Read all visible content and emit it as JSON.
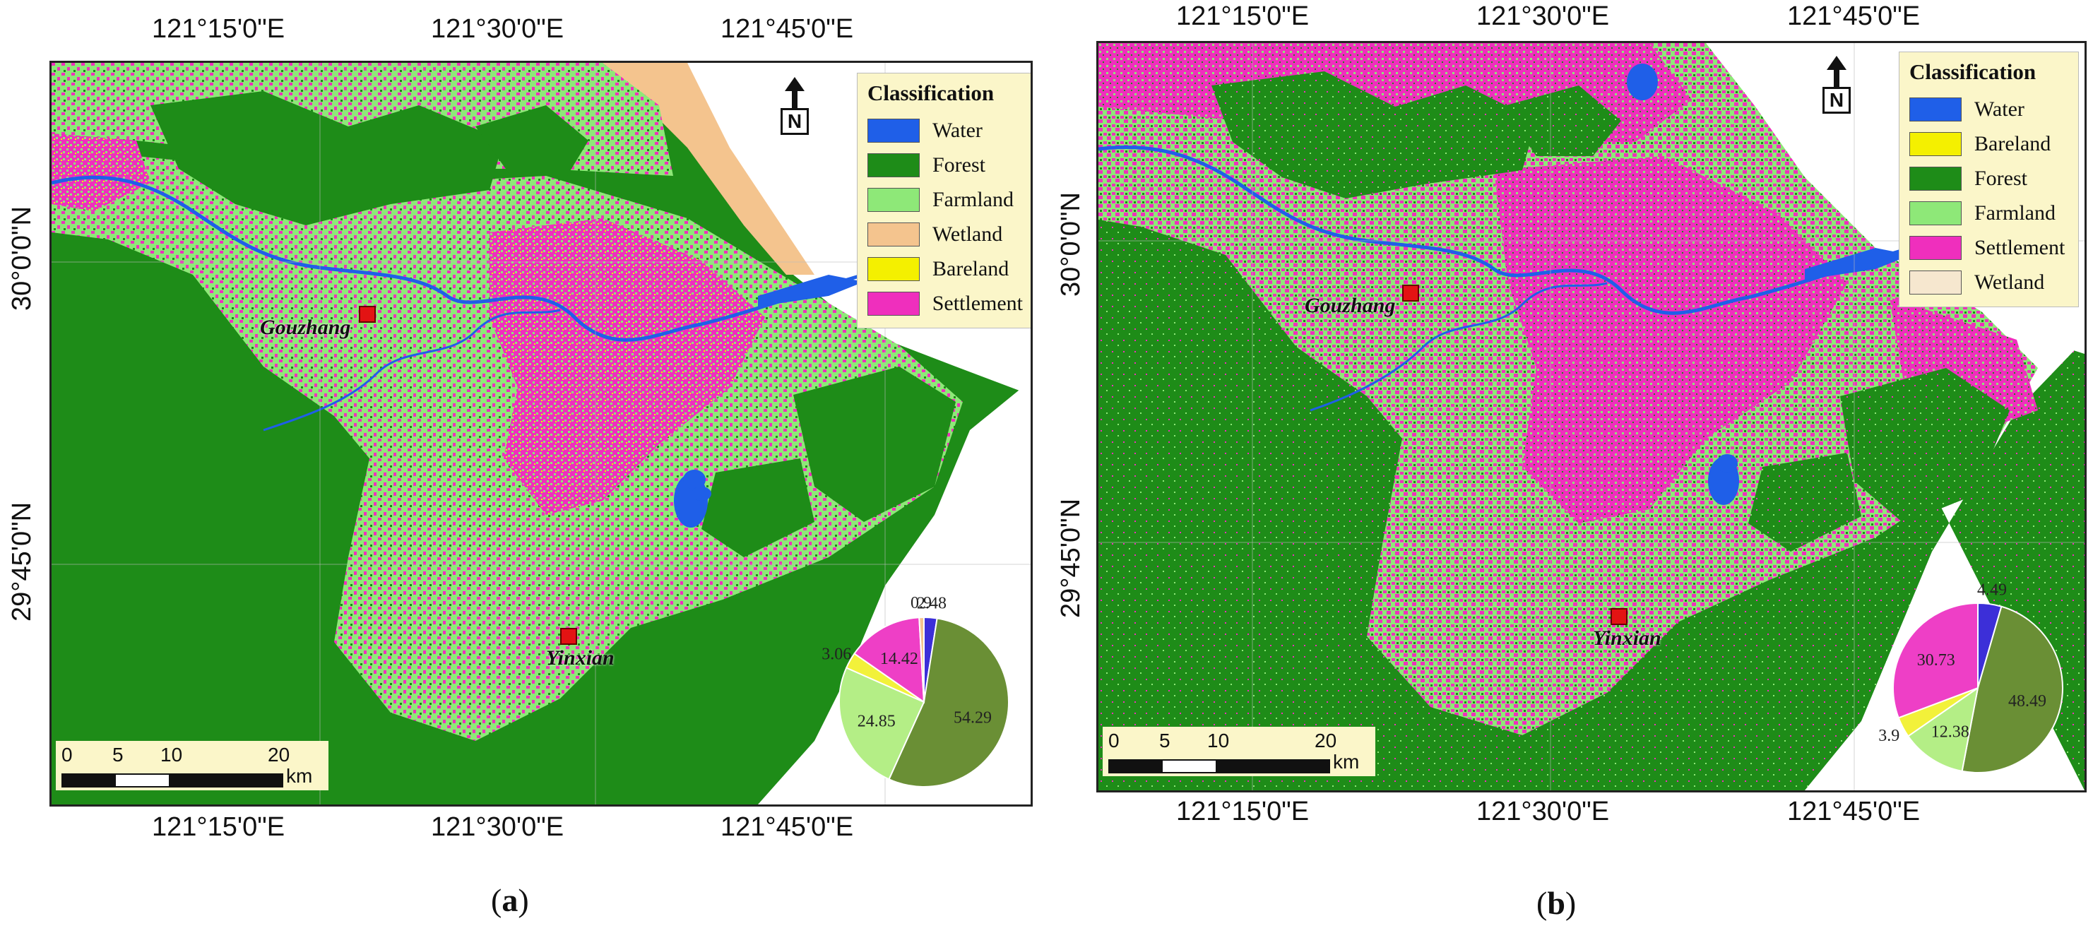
{
  "colors": {
    "water": "#1f5fe8",
    "forest": "#1e8c18",
    "farmland": "#8ee878",
    "wetland": "#f4c48e",
    "wetland_b": "#f6e7cf",
    "bareland": "#f4f000",
    "settlement": "#ef2fbd",
    "pie_forest": "#6a8f35",
    "pie_farmland": "#b4ee86",
    "pie_water": "#3c2fd8",
    "pie_settlement": "#ee3fc6",
    "pie_bareland": "#f2f13a"
  },
  "panel_a": {
    "label_open": "(",
    "label_letter": "a",
    "label_close": ")",
    "top_lon": [
      "121°15'0\"E",
      "121°30'0\"E",
      "121°45'0\"E"
    ],
    "bottom_lon": [
      "121°15'0\"E",
      "121°30'0\"E",
      "121°45'0\"E"
    ],
    "lat": [
      "30°0'0\"N",
      "29°45'0\"N"
    ],
    "legend": {
      "title": "Classification",
      "items": [
        {
          "label": "Water",
          "color": "#1f5fe8"
        },
        {
          "label": "Forest",
          "color": "#1e8c18"
        },
        {
          "label": "Farmland",
          "color": "#8ee878"
        },
        {
          "label": "Wetland",
          "color": "#f4c48e"
        },
        {
          "label": "Bareland",
          "color": "#f4f000"
        },
        {
          "label": "Settlement",
          "color": "#ef2fbd"
        }
      ]
    },
    "north": "N",
    "cities": [
      "Gouzhang",
      "Yinxian"
    ],
    "scale": {
      "ticks": [
        "0",
        "5",
        "10",
        "20"
      ],
      "unit": "km"
    },
    "pie": [
      {
        "label": "2.48",
        "value": 2.48,
        "color": "#3c2fd8"
      },
      {
        "label": "54.29",
        "value": 54.29,
        "color": "#6a8f35"
      },
      {
        "label": "24.85",
        "value": 24.85,
        "color": "#b4ee86"
      },
      {
        "label": "3.06",
        "value": 3.06,
        "color": "#f2f13a"
      },
      {
        "label": "14.42",
        "value": 14.42,
        "color": "#ee3fc6"
      },
      {
        "label": "0.9",
        "value": 0.9,
        "color": "#f4c48e"
      }
    ]
  },
  "panel_b": {
    "label_open": "(",
    "label_letter": "b",
    "label_close": ")",
    "top_lon": [
      "121°15'0\"E",
      "121°30'0\"E",
      "121°45'0\"E"
    ],
    "bottom_lon": [
      "121°15'0\"E",
      "121°30'0\"E",
      "121°45'0\"E"
    ],
    "lat": [
      "30°0'0\"N",
      "29°45'0\"N"
    ],
    "legend": {
      "title": "Classification",
      "items": [
        {
          "label": "Water",
          "color": "#1f5fe8"
        },
        {
          "label": "Bareland",
          "color": "#f4f000"
        },
        {
          "label": "Forest",
          "color": "#1e8c18"
        },
        {
          "label": "Farmland",
          "color": "#8ee878"
        },
        {
          "label": "Settlement",
          "color": "#ef2fbd"
        },
        {
          "label": "Wetland",
          "color": "#f6e7cf"
        }
      ]
    },
    "north": "N",
    "cities": [
      "Gouzhang",
      "Yinxian"
    ],
    "scale": {
      "ticks": [
        "0",
        "5",
        "10",
        "20"
      ],
      "unit": "km"
    },
    "pie": [
      {
        "label": "4.49",
        "value": 4.49,
        "color": "#3c2fd8"
      },
      {
        "label": "48.49",
        "value": 48.49,
        "color": "#6a8f35"
      },
      {
        "label": "12.38",
        "value": 12.38,
        "color": "#b4ee86"
      },
      {
        "label": "3.9",
        "value": 3.9,
        "color": "#f2f13a"
      },
      {
        "label": "30.73",
        "value": 30.73,
        "color": "#ee3fc6"
      }
    ]
  }
}
